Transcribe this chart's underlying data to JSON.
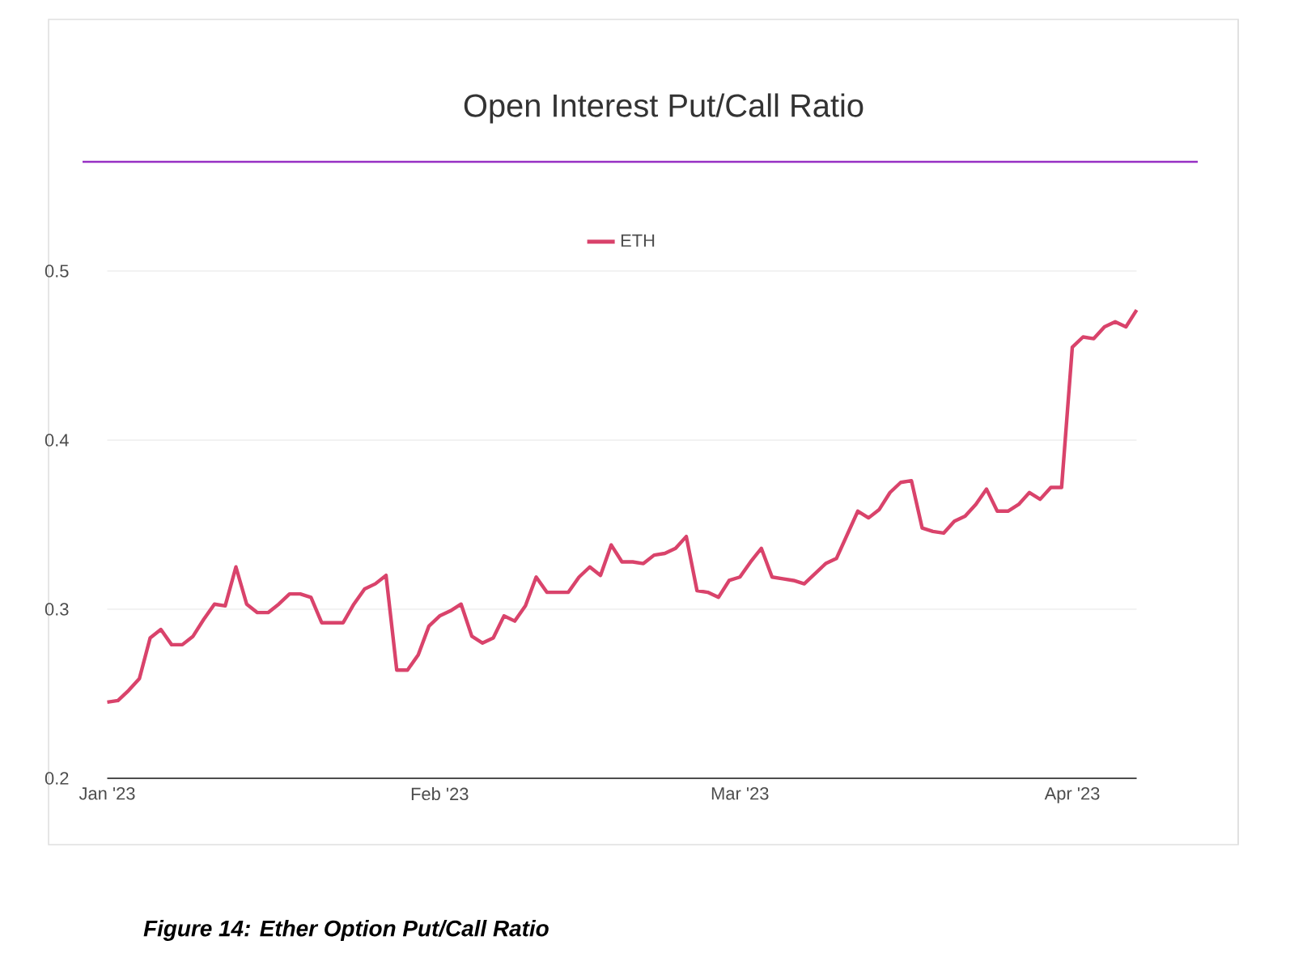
{
  "chart_data": {
    "type": "line",
    "title": "Open Interest Put/Call Ratio",
    "annotations": [
      "Figure 14: Ether Option Put/Call Ratio"
    ],
    "x": [
      "2023-01-01",
      "2023-01-02",
      "2023-01-03",
      "2023-01-04",
      "2023-01-05",
      "2023-01-06",
      "2023-01-07",
      "2023-01-08",
      "2023-01-09",
      "2023-01-10",
      "2023-01-11",
      "2023-01-12",
      "2023-01-13",
      "2023-01-14",
      "2023-01-15",
      "2023-01-16",
      "2023-01-17",
      "2023-01-18",
      "2023-01-19",
      "2023-01-20",
      "2023-01-21",
      "2023-01-22",
      "2023-01-23",
      "2023-01-24",
      "2023-01-25",
      "2023-01-26",
      "2023-01-27",
      "2023-01-28",
      "2023-01-29",
      "2023-01-30",
      "2023-01-31",
      "2023-02-01",
      "2023-02-02",
      "2023-02-03",
      "2023-02-04",
      "2023-02-05",
      "2023-02-06",
      "2023-02-07",
      "2023-02-08",
      "2023-02-09",
      "2023-02-10",
      "2023-02-11",
      "2023-02-12",
      "2023-02-13",
      "2023-02-14",
      "2023-02-15",
      "2023-02-16",
      "2023-02-17",
      "2023-02-18",
      "2023-02-19",
      "2023-02-20",
      "2023-02-21",
      "2023-02-22",
      "2023-02-23",
      "2023-02-24",
      "2023-02-25",
      "2023-02-26",
      "2023-02-27",
      "2023-02-28",
      "2023-03-01",
      "2023-03-02",
      "2023-03-03",
      "2023-03-04",
      "2023-03-05",
      "2023-03-06",
      "2023-03-07",
      "2023-03-08",
      "2023-03-09",
      "2023-03-10",
      "2023-03-11",
      "2023-03-12",
      "2023-03-13",
      "2023-03-14",
      "2023-03-15",
      "2023-03-16",
      "2023-03-17",
      "2023-03-18",
      "2023-03-19",
      "2023-03-20",
      "2023-03-21",
      "2023-03-22",
      "2023-03-23",
      "2023-03-24",
      "2023-03-25",
      "2023-03-26",
      "2023-03-27",
      "2023-03-28",
      "2023-03-29",
      "2023-03-30",
      "2023-03-31",
      "2023-04-01",
      "2023-04-02",
      "2023-04-03",
      "2023-04-04",
      "2023-04-05",
      "2023-04-06",
      "2023-04-07"
    ],
    "series": [
      {
        "name": "ETH",
        "color": "#d9436b",
        "values": [
          0.245,
          0.246,
          0.252,
          0.259,
          0.283,
          0.288,
          0.279,
          0.279,
          0.284,
          0.294,
          0.303,
          0.302,
          0.325,
          0.303,
          0.298,
          0.298,
          0.303,
          0.309,
          0.309,
          0.307,
          0.292,
          0.292,
          0.292,
          0.303,
          0.312,
          0.315,
          0.32,
          0.264,
          0.264,
          0.273,
          0.29,
          0.296,
          0.299,
          0.303,
          0.284,
          0.28,
          0.283,
          0.296,
          0.293,
          0.302,
          0.319,
          0.31,
          0.31,
          0.31,
          0.319,
          0.325,
          0.32,
          0.338,
          0.328,
          0.328,
          0.327,
          0.332,
          0.333,
          0.336,
          0.343,
          0.311,
          0.31,
          0.307,
          0.317,
          0.319,
          0.328,
          0.336,
          0.319,
          0.318,
          0.317,
          0.315,
          0.321,
          0.327,
          0.33,
          0.344,
          0.358,
          0.354,
          0.359,
          0.369,
          0.375,
          0.376,
          0.348,
          0.346,
          0.345,
          0.352,
          0.355,
          0.362,
          0.371,
          0.358,
          0.358,
          0.362,
          0.369,
          0.365,
          0.372,
          0.372,
          0.455,
          0.461,
          0.46,
          0.467,
          0.47,
          0.467,
          0.477
        ]
      }
    ],
    "xlim": [
      "2023-01-01",
      "2023-04-07"
    ],
    "xticks": [
      {
        "value": "2023-01-01",
        "label": "Jan '23"
      },
      {
        "value": "2023-02-01",
        "label": "Feb '23"
      },
      {
        "value": "2023-03-01",
        "label": "Mar '23"
      },
      {
        "value": "2023-04-01",
        "label": "Apr '23"
      }
    ],
    "ylim": [
      0.2,
      0.5
    ],
    "yticks": [
      0.2,
      0.3,
      0.4,
      0.5
    ],
    "grid": "y",
    "legend": "top",
    "line_style": "solid"
  }
}
